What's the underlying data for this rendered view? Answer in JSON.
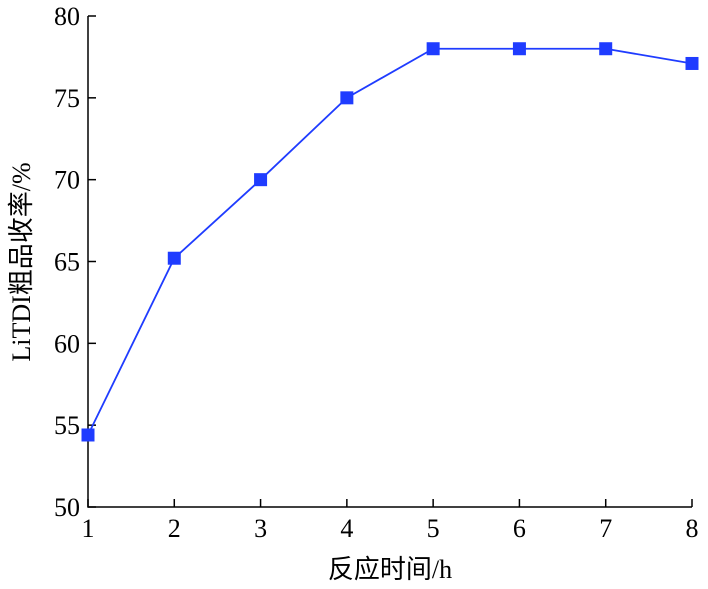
{
  "chart_data": {
    "type": "line",
    "x_label": "反应时间/h",
    "y_label": "LiTDI粗品收率/%",
    "x": [
      1,
      2,
      3,
      4,
      5,
      6,
      7,
      8
    ],
    "series": [
      {
        "color": "#1f3cff",
        "values": [
          54.4,
          65.2,
          70,
          75,
          78,
          78,
          78,
          77.1
        ]
      }
    ],
    "xlim": [
      1,
      8
    ],
    "xticks": [
      1,
      2,
      3,
      4,
      5,
      6,
      7,
      8
    ],
    "ylim": [
      50,
      80
    ],
    "yticks": [
      50,
      55,
      60,
      65,
      70,
      75,
      80
    ],
    "marker": "square"
  }
}
